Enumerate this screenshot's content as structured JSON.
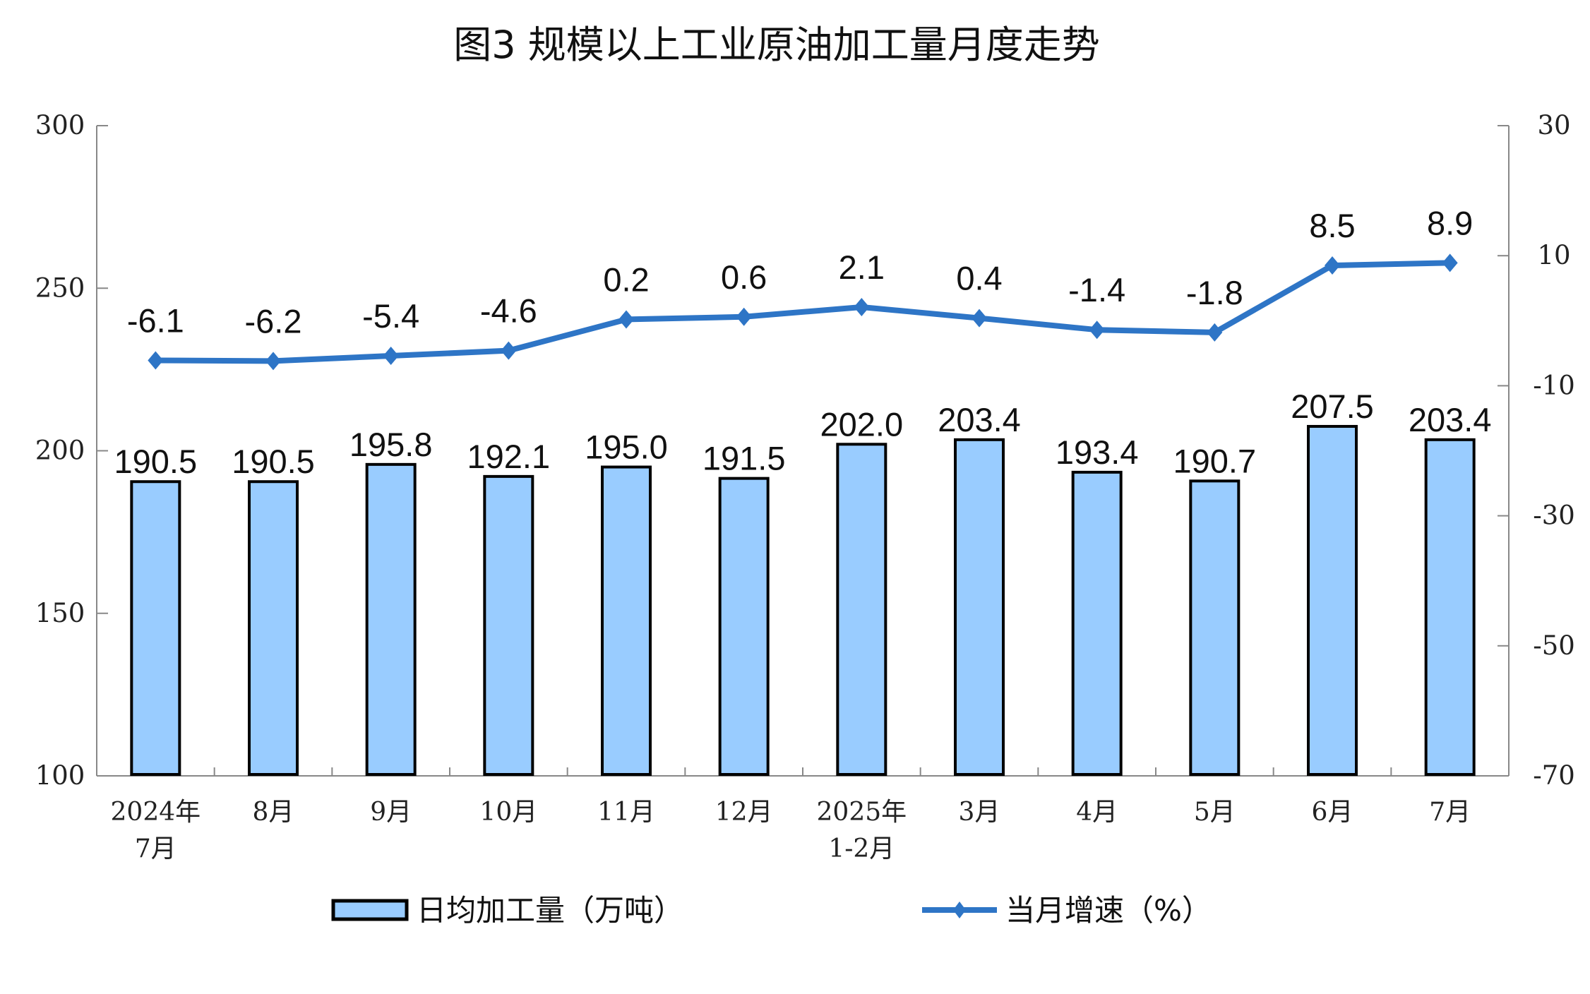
{
  "chart_data": {
    "type": "bar+line",
    "title": "图3  规模以上工业原油加工量月度走势",
    "categories": [
      [
        "2024年",
        "7月"
      ],
      [
        "8月"
      ],
      [
        "9月"
      ],
      [
        "10月"
      ],
      [
        "11月"
      ],
      [
        "12月"
      ],
      [
        "2025年",
        "1-2月"
      ],
      [
        "3月"
      ],
      [
        "4月"
      ],
      [
        "5月"
      ],
      [
        "6月"
      ],
      [
        "7月"
      ]
    ],
    "series": [
      {
        "name": "日均加工量（万吨）",
        "type": "bar",
        "axis": "left",
        "values": [
          190.5,
          190.5,
          195.8,
          192.1,
          195.0,
          191.5,
          202.0,
          203.4,
          193.4,
          190.7,
          207.5,
          203.4
        ],
        "labels": [
          "190.5",
          "190.5",
          "195.8",
          "192.1",
          "195.0",
          "191.5",
          "202.0",
          "203.4",
          "193.4",
          "190.7",
          "207.5",
          "203.4"
        ],
        "color": "#99ccff"
      },
      {
        "name": "当月增速（%）",
        "type": "line",
        "axis": "right",
        "values": [
          -6.1,
          -6.2,
          -5.4,
          -4.6,
          0.2,
          0.6,
          2.1,
          0.4,
          -1.4,
          -1.8,
          8.5,
          8.9
        ],
        "labels": [
          "-6.1",
          "-6.2",
          "-5.4",
          "-4.6",
          "0.2",
          "0.6",
          "2.1",
          "0.4",
          "-1.4",
          "-1.8",
          "8.5",
          "8.9"
        ],
        "color": "#2e75c6"
      }
    ],
    "left_axis": {
      "range": [
        100,
        300
      ],
      "ticks": [
        "100",
        "150",
        "200",
        "250",
        "300"
      ]
    },
    "right_axis": {
      "range": [
        -70,
        30
      ],
      "ticks": [
        "-70",
        "-50",
        "-30",
        "-10",
        "10",
        "30"
      ]
    },
    "grid": false,
    "legend": "bottom"
  }
}
